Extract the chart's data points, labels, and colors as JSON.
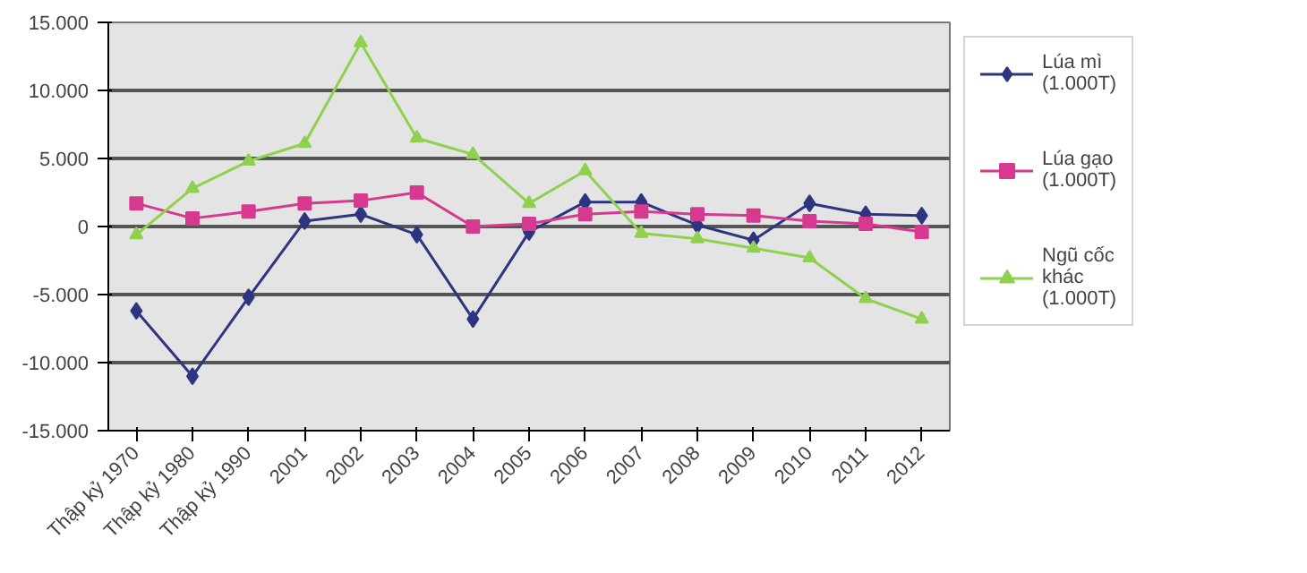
{
  "chart_data": {
    "type": "line",
    "categories": [
      "Thập kỷ 1970",
      "Thập kỷ 1980",
      "Thập kỷ 1990",
      "2001",
      "2002",
      "2003",
      "2004",
      "2005",
      "2006",
      "2007",
      "2008",
      "2009",
      "2010",
      "2011",
      "2012"
    ],
    "series": [
      {
        "name": "Lúa mì (1.000T)",
        "color": "#2e3580",
        "marker": "diamond",
        "values": [
          -6200,
          -11000,
          -5200,
          400,
          900,
          -600,
          -6800,
          -400,
          1800,
          1800,
          100,
          -1000,
          1700,
          900,
          800
        ]
      },
      {
        "name": "Lúa gạo (1.000T)",
        "color": "#d6398f",
        "marker": "square",
        "values": [
          1700,
          600,
          1100,
          1700,
          1900,
          2500,
          0,
          200,
          900,
          1100,
          900,
          800,
          400,
          200,
          -400
        ]
      },
      {
        "name": "Ngũ cốc khác (1.000T)",
        "color": "#8fd14f",
        "marker": "triangle",
        "values": [
          -600,
          2800,
          4800,
          6100,
          13500,
          6500,
          5300,
          1700,
          4100,
          -500,
          -900,
          -1600,
          -2300,
          -5300,
          -6800
        ]
      }
    ],
    "ylim": [
      -15000,
      15000
    ],
    "yticks": [
      {
        "value": -15000,
        "label": "-15.000"
      },
      {
        "value": -10000,
        "label": "-10.000"
      },
      {
        "value": -5000,
        "label": "-5.000"
      },
      0,
      {
        "value": 5000,
        "label": "5.000"
      },
      {
        "value": 10000,
        "label": "10.000"
      },
      {
        "value": 15000,
        "label": "15.000"
      }
    ],
    "grid": "y",
    "legend": "right"
  }
}
